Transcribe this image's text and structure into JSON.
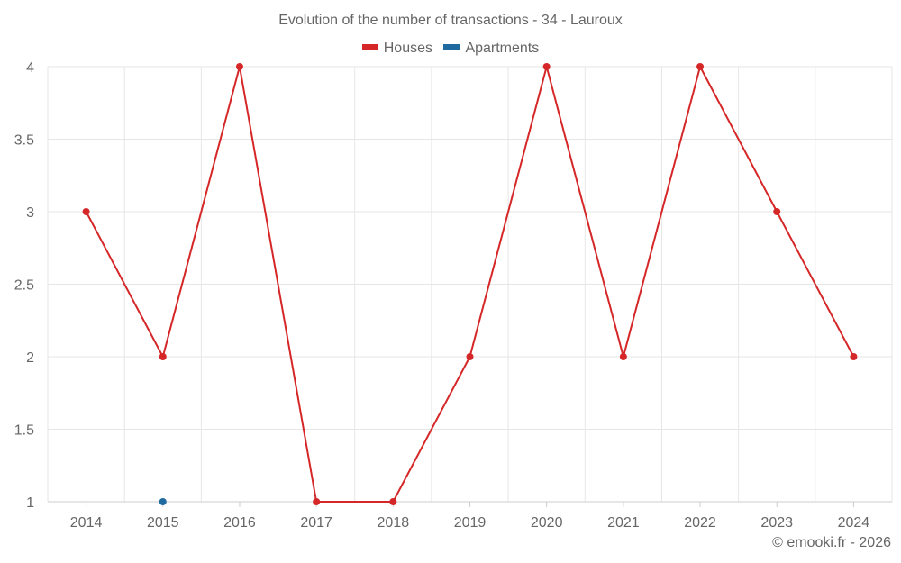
{
  "chart_data": {
    "type": "line",
    "title": "Evolution of the number of transactions - 34 - Lauroux",
    "x": [
      "2014",
      "2015",
      "2016",
      "2017",
      "2018",
      "2019",
      "2020",
      "2021",
      "2022",
      "2023",
      "2024"
    ],
    "ylim": [
      1,
      4
    ],
    "yticks": [
      1,
      1.5,
      2,
      2.5,
      3,
      3.5,
      4
    ],
    "ytick_labels": [
      "1",
      "1.5",
      "2",
      "2.5",
      "3",
      "3.5",
      "4"
    ],
    "grid": true,
    "legend_position": "top-center",
    "series": [
      {
        "name": "Houses",
        "color": "#d62728",
        "values": [
          3,
          2,
          4,
          1,
          1,
          2,
          4,
          2,
          4,
          3,
          2
        ]
      },
      {
        "name": "Apartments",
        "color": "#1f6a9e",
        "values": [
          null,
          1,
          null,
          null,
          null,
          null,
          null,
          null,
          null,
          null,
          null
        ]
      }
    ]
  },
  "credit": "© emooki.fr - 2026"
}
